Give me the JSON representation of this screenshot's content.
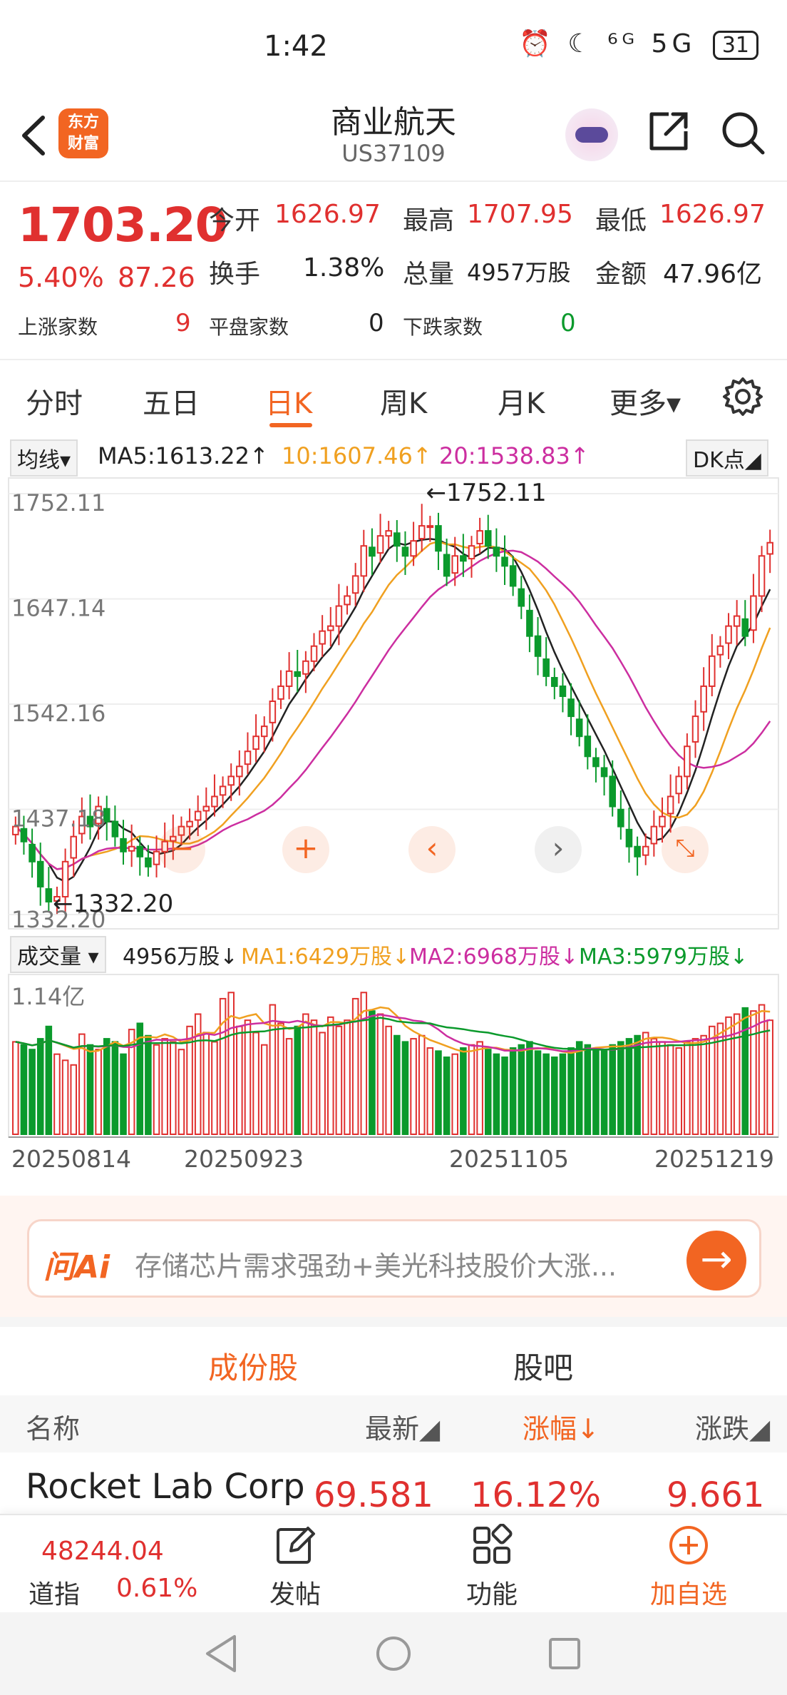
{
  "status_bar": {
    "time": "1:42",
    "icons": "⏰ ☾ ⁶ᴳ 5G",
    "battery": "31"
  },
  "header": {
    "title": "商业航天",
    "subtitle": "US37109",
    "logo_line1": "东方",
    "logo_line2": "财富"
  },
  "quote": {
    "price": "1703.20",
    "pct": "5.40%",
    "change": "87.26",
    "open_label": "今开",
    "open": "1626.97",
    "high_label": "最高",
    "high": "1707.95",
    "low_label": "最低",
    "low": "1626.97",
    "turnover_label": "换手",
    "turnover": "1.38%",
    "volume_label": "总量",
    "volume": "4957万股",
    "amount_label": "金额",
    "amount": "47.96亿",
    "up_label": "上涨家数",
    "up": "9",
    "flat_label": "平盘家数",
    "flat": "0",
    "down_label": "下跌家数",
    "down": "0"
  },
  "period_tabs": [
    "分时",
    "五日",
    "日K",
    "周K",
    "月K",
    "更多▾"
  ],
  "ma_row": {
    "dropdown": "均线▾",
    "ma5": "MA5:1613.22↑",
    "ma10": "10:1607.46↑",
    "ma20": "20:1538.83↑",
    "dk": "DK点◢"
  },
  "vol_row": {
    "dropdown": "成交量 ▾",
    "vol": "4956万股↓",
    "ma1": "MA1:6429万股↓",
    "ma2": "MA2:6968万股↓",
    "ma3": "MA3:5979万股↓"
  },
  "colors": {
    "up": "#e0302f",
    "down": "#0b9a2c",
    "ma5": "#222222",
    "ma10": "#f0a020",
    "ma20": "#cc2ea0",
    "accent": "#f26522"
  },
  "chart_data": {
    "type": "candlestick",
    "y_ticks": [
      "1752.11",
      "1647.14",
      "1542.16",
      "1437.18",
      "1332.20"
    ],
    "ylim": [
      1332.2,
      1752.11
    ],
    "high_marker": "←1752.11",
    "low_marker": "←1332.20",
    "closes": [
      1420,
      1405,
      1385,
      1360,
      1345,
      1350,
      1385,
      1410,
      1430,
      1420,
      1440,
      1425,
      1410,
      1395,
      1400,
      1390,
      1380,
      1395,
      1405,
      1410,
      1420,
      1425,
      1435,
      1440,
      1450,
      1460,
      1470,
      1480,
      1495,
      1510,
      1520,
      1545,
      1560,
      1575,
      1570,
      1585,
      1600,
      1615,
      1620,
      1640,
      1650,
      1670,
      1700,
      1690,
      1710,
      1715,
      1700,
      1690,
      1705,
      1720,
      1720,
      1695,
      1670,
      1690,
      1685,
      1700,
      1715,
      1700,
      1690,
      1680,
      1660,
      1640,
      1610,
      1590,
      1570,
      1560,
      1550,
      1530,
      1510,
      1490,
      1480,
      1470,
      1440,
      1420,
      1400,
      1390,
      1400,
      1420,
      1430,
      1450,
      1470,
      1500,
      1530,
      1560,
      1590,
      1600,
      1620,
      1630,
      1610,
      1650,
      1690,
      1703.2
    ],
    "x_ticks": [
      "20250814",
      "20250923",
      "20251105",
      "20251219"
    ],
    "volume_ylabel": "1.14亿",
    "volumes": [
      60,
      58,
      55,
      62,
      70,
      52,
      48,
      45,
      65,
      58,
      55,
      62,
      60,
      52,
      68,
      72,
      64,
      58,
      62,
      60,
      55,
      70,
      78,
      66,
      60,
      88,
      92,
      70,
      74,
      66,
      58,
      84,
      72,
      62,
      70,
      78,
      74,
      66,
      76,
      70,
      74,
      88,
      92,
      80,
      78,
      70,
      64,
      60,
      62,
      64,
      56,
      54,
      50,
      52,
      56,
      58,
      60,
      55,
      52,
      50,
      56,
      58,
      60,
      54,
      52,
      50,
      52,
      56,
      60,
      58,
      55,
      54,
      58,
      60,
      62,
      64,
      66,
      62,
      60,
      58,
      56,
      60,
      62,
      64,
      70,
      72,
      76,
      78,
      82,
      80,
      84,
      74
    ]
  },
  "ai_box": {
    "logo": "问Ai",
    "text": "存储芯片需求强劲+美光科技股价大涨..."
  },
  "sub_tabs": [
    "成份股",
    "股吧"
  ],
  "table": {
    "headers": [
      "名称",
      "最新◢",
      "涨幅↓",
      "涨跌◢"
    ],
    "row1": {
      "name": "Rocket Lab Corp",
      "price": "69.581",
      "pct": "16.12%",
      "change": "9.661"
    }
  },
  "bottom_nav": {
    "dow_value": "48244.04",
    "dow_name": "道指",
    "dow_pct": "0.61%",
    "items": [
      "发帖",
      "功能",
      "加自选"
    ]
  }
}
